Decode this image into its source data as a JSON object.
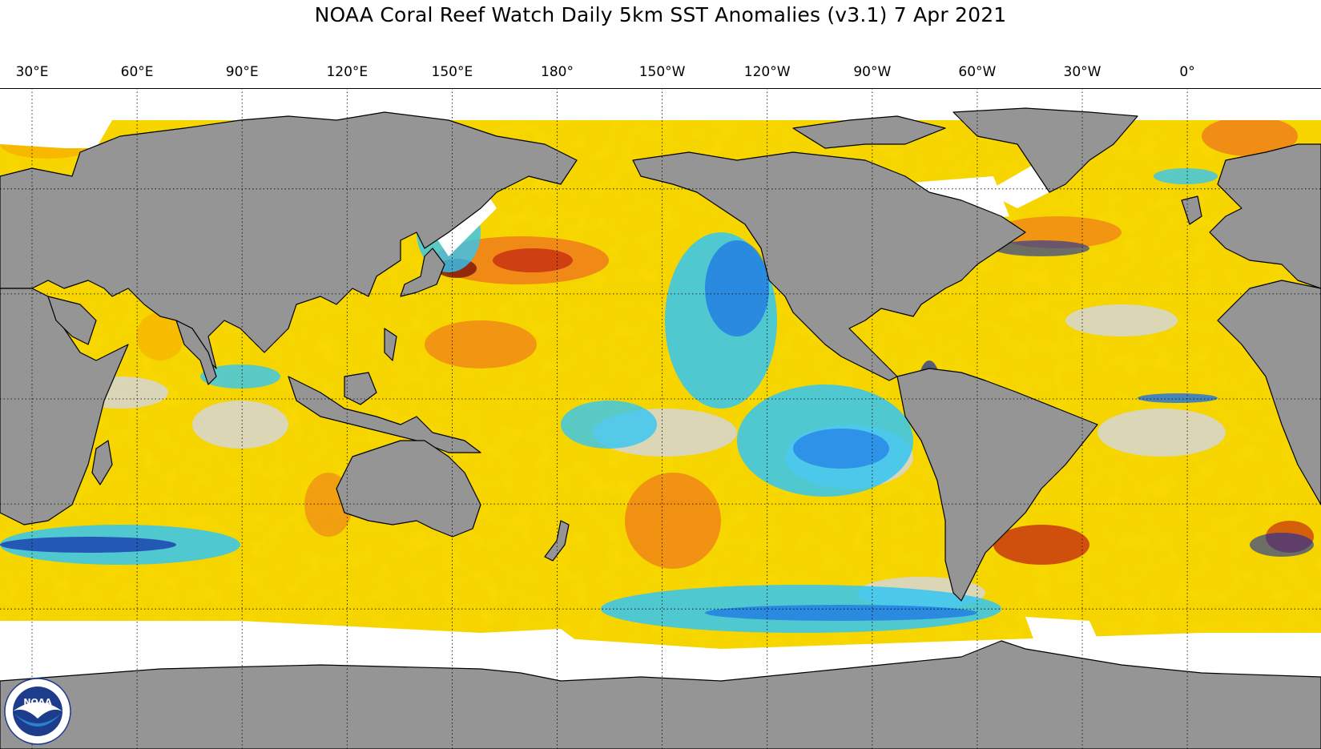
{
  "title": "NOAA Coral Reef Watch Daily 5km SST Anomalies  (v3.1)   7 Apr 2021",
  "longitude_labels": [
    {
      "label": "30°E",
      "lon": 30
    },
    {
      "label": "60°E",
      "lon": 60
    },
    {
      "label": "90°E",
      "lon": 90
    },
    {
      "label": "120°E",
      "lon": 120
    },
    {
      "label": "150°E",
      "lon": 150
    },
    {
      "label": "180°",
      "lon": 180
    },
    {
      "label": "150°W",
      "lon": 210
    },
    {
      "label": "120°W",
      "lon": 240
    },
    {
      "label": "90°W",
      "lon": 270
    },
    {
      "label": "60°W",
      "lon": 300
    },
    {
      "label": "30°W",
      "lon": 330
    },
    {
      "label": "0°",
      "lon": 360
    }
  ],
  "logo": {
    "text": "NOAA",
    "ring_text": "NATIONAL OCEANIC AND ATMOSPHERIC ADMINISTRATION · U.S. DEPARTMENT OF COMMERCE"
  },
  "colors": {
    "land": "#959595",
    "ice": "#ffffff",
    "ocean_base": "#f5d400",
    "warm_1": "#f7b500",
    "warm_2": "#ef7b1a",
    "warm_3": "#c62d10",
    "neutral": "#d6d6d6",
    "cool_1": "#33c6f5",
    "cool_2": "#1a6fe6",
    "cool_3": "#1029a8"
  }
}
